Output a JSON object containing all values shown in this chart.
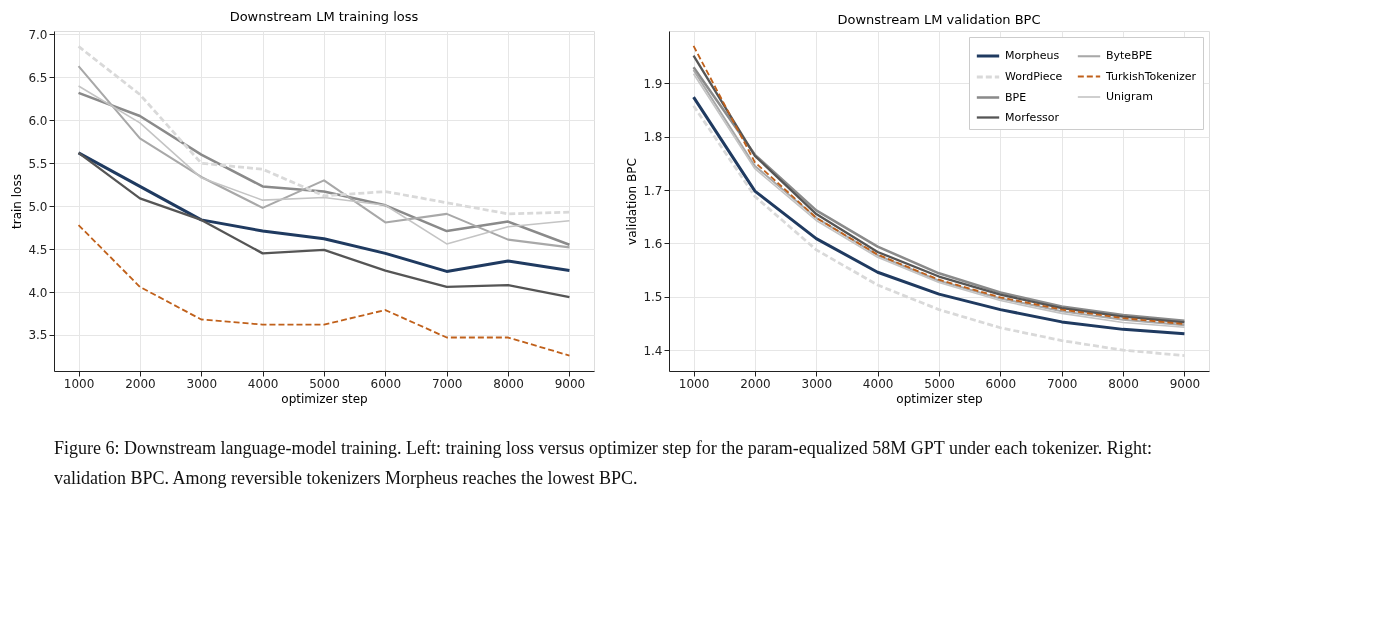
{
  "chart_data": [
    {
      "type": "line",
      "title": "Downstream LM training loss",
      "xlabel": "optimizer step",
      "ylabel": "train loss",
      "x": [
        1000,
        2000,
        3000,
        4000,
        5000,
        6000,
        7000,
        8000,
        9000
      ],
      "xlim": [
        600,
        9400
      ],
      "xticks": [
        1000,
        2000,
        3000,
        4000,
        5000,
        6000,
        7000,
        8000,
        9000
      ],
      "ylim": [
        3.08,
        7.04
      ],
      "yticks": [
        {
          "value": 3.5,
          "label": "3.5"
        },
        {
          "value": 4.0,
          "label": "4.0"
        },
        {
          "value": 4.5,
          "label": "4.5"
        },
        {
          "value": 5.0,
          "label": "5.0"
        },
        {
          "value": 5.5,
          "label": "5.5"
        },
        {
          "value": 6.0,
          "label": "6.0"
        },
        {
          "value": 6.5,
          "label": "6.5"
        },
        {
          "value": 7.0,
          "label": "7.0"
        }
      ],
      "grid": true,
      "legend": false,
      "marker": "none",
      "series": [
        {
          "color": "#1f3a60",
          "line_style": "solid",
          "values": [
            5.62,
            5.23,
            4.84,
            4.71,
            4.62,
            4.45,
            4.24,
            4.36,
            4.25
          ]
        },
        {
          "color": "#8a8a8a",
          "line_style": "solid",
          "values": [
            6.32,
            6.05,
            5.6,
            5.23,
            5.17,
            5.01,
            4.71,
            4.82,
            4.55
          ]
        },
        {
          "color": "#a8a8a8",
          "line_style": "solid",
          "values": [
            6.63,
            5.79,
            5.34,
            4.98,
            5.3,
            4.81,
            4.91,
            4.61,
            4.52
          ]
        },
        {
          "color": "#c4c4c4",
          "line_style": "solid",
          "values": [
            6.4,
            5.97,
            5.33,
            5.07,
            5.1,
            5.01,
            4.56,
            4.76,
            4.83
          ]
        },
        {
          "color": "#d9d9d9",
          "line_style": "dashed",
          "values": [
            6.86,
            6.3,
            5.5,
            5.43,
            5.12,
            5.17,
            5.04,
            4.91,
            4.93
          ]
        },
        {
          "color": "#555555",
          "line_style": "solid",
          "values": [
            5.62,
            5.09,
            4.84,
            4.45,
            4.49,
            4.25,
            4.06,
            4.08,
            3.94
          ]
        },
        {
          "color": "#c0601a",
          "line_style": "dashed",
          "values": [
            4.78,
            4.06,
            3.68,
            3.62,
            3.62,
            3.79,
            3.47,
            3.47,
            3.26
          ]
        }
      ],
      "annotations": [
        "Figure 6: Downstream language-model training. Left: training loss versus optimizer step for the param-equalized 58M GPT under each tokenizer. Right: validation BPC. Among reversible tokenizers Morpheus reaches the lowest BPC."
      ]
    },
    {
      "type": "line",
      "title": "Downstream LM validation BPC",
      "xlabel": "optimizer step",
      "ylabel": "validation BPC",
      "x": [
        1000,
        2000,
        3000,
        4000,
        5000,
        6000,
        7000,
        8000,
        9000
      ],
      "xlim": [
        600,
        9400
      ],
      "xticks": [
        1000,
        2000,
        3000,
        4000,
        5000,
        6000,
        7000,
        8000,
        9000
      ],
      "ylim": [
        1.361,
        1.998
      ],
      "yticks": [
        {
          "value": 1.4,
          "label": "1.4"
        },
        {
          "value": 1.5,
          "label": "1.5"
        },
        {
          "value": 1.6,
          "label": "1.6"
        },
        {
          "value": 1.7,
          "label": "1.7"
        },
        {
          "value": 1.8,
          "label": "1.8"
        },
        {
          "value": 1.9,
          "label": "1.9"
        }
      ],
      "grid": true,
      "legend": "top right",
      "marker": "none",
      "series": [
        {
          "name": "Morpheus",
          "color": "#1f3a60",
          "line_style": "solid",
          "values": [
            1.874,
            1.698,
            1.609,
            1.546,
            1.505,
            1.476,
            1.453,
            1.439,
            1.431
          ]
        },
        {
          "name": "BPE",
          "color": "#8a8a8a",
          "line_style": "solid",
          "values": [
            1.93,
            1.766,
            1.662,
            1.594,
            1.544,
            1.508,
            1.482,
            1.466,
            1.455
          ]
        },
        {
          "name": "ByteBPE",
          "color": "#a8a8a8",
          "line_style": "solid",
          "values": [
            1.925,
            1.745,
            1.648,
            1.578,
            1.53,
            1.497,
            1.473,
            1.457,
            1.447
          ]
        },
        {
          "name": "Unigram",
          "color": "#c4c4c4",
          "line_style": "solid",
          "values": [
            1.918,
            1.74,
            1.643,
            1.574,
            1.527,
            1.493,
            1.469,
            1.452,
            1.443
          ]
        },
        {
          "name": "WordPiece",
          "color": "#d9d9d9",
          "line_style": "dashed",
          "values": [
            1.858,
            1.688,
            1.588,
            1.522,
            1.476,
            1.442,
            1.418,
            1.4,
            1.39
          ]
        },
        {
          "name": "Morfessor",
          "color": "#555555",
          "line_style": "solid",
          "values": [
            1.952,
            1.764,
            1.655,
            1.584,
            1.538,
            1.504,
            1.479,
            1.463,
            1.452
          ]
        },
        {
          "name": "TurkishTokenizer",
          "color": "#c0601a",
          "line_style": "dashed",
          "values": [
            1.97,
            1.752,
            1.648,
            1.579,
            1.532,
            1.499,
            1.476,
            1.46,
            1.449
          ]
        }
      ]
    }
  ]
}
